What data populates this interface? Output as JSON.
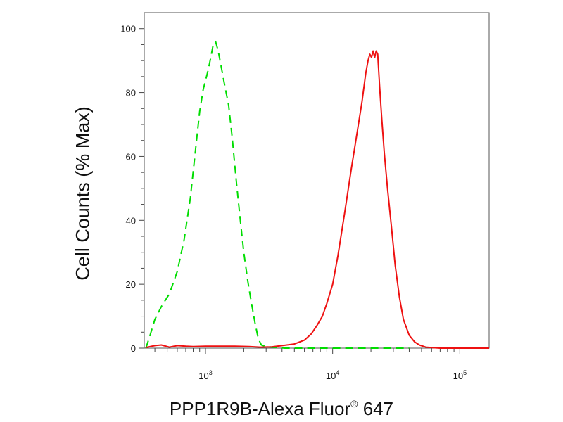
{
  "chart_data": {
    "type": "line",
    "title": "",
    "ylabel": "Cell Counts (% Max)",
    "xlabel": {
      "main": "PPP1R9B-Alexa Fluor",
      "sup": "®",
      "tail": " 647"
    },
    "x_scale": "log",
    "xlim": [
      330,
      170000
    ],
    "ylim": [
      0,
      105
    ],
    "y_ticks": [
      0,
      20,
      40,
      60,
      80,
      100
    ],
    "x_ticks": [
      {
        "value": 1000,
        "base": "10",
        "exp": "3"
      },
      {
        "value": 10000,
        "base": "10",
        "exp": "4"
      },
      {
        "value": 100000,
        "base": "10",
        "exp": "5"
      }
    ],
    "grid": false,
    "series": [
      {
        "color": "#00dd00",
        "dash": "dashed",
        "points": [
          [
            340,
            0
          ],
          [
            360,
            3
          ],
          [
            400,
            9
          ],
          [
            450,
            13
          ],
          [
            520,
            17
          ],
          [
            600,
            24
          ],
          [
            680,
            34
          ],
          [
            760,
            47
          ],
          [
            840,
            63
          ],
          [
            900,
            74
          ],
          [
            960,
            81
          ],
          [
            1050,
            87
          ],
          [
            1100,
            91
          ],
          [
            1150,
            95
          ],
          [
            1200,
            96
          ],
          [
            1260,
            93
          ],
          [
            1330,
            88
          ],
          [
            1420,
            82
          ],
          [
            1520,
            76
          ],
          [
            1620,
            66
          ],
          [
            1750,
            52
          ],
          [
            1880,
            40
          ],
          [
            2000,
            30
          ],
          [
            2150,
            21
          ],
          [
            2300,
            14
          ],
          [
            2450,
            8
          ],
          [
            2600,
            3
          ],
          [
            2750,
            1
          ],
          [
            3000,
            0.5
          ],
          [
            3400,
            0.3
          ],
          [
            4200,
            0
          ],
          [
            9000,
            0
          ],
          [
            20000,
            0
          ],
          [
            40000,
            0
          ]
        ]
      },
      {
        "color": "#ee1111",
        "dash": "solid",
        "points": [
          [
            340,
            0.2
          ],
          [
            400,
            0.8
          ],
          [
            450,
            1
          ],
          [
            520,
            0.3
          ],
          [
            600,
            0.8
          ],
          [
            700,
            0.6
          ],
          [
            800,
            0.5
          ],
          [
            1000,
            0.6
          ],
          [
            1300,
            0.6
          ],
          [
            1700,
            0.6
          ],
          [
            2200,
            0.5
          ],
          [
            2700,
            0.3
          ],
          [
            3300,
            0.4
          ],
          [
            4000,
            0.8
          ],
          [
            5000,
            1.3
          ],
          [
            6000,
            2.5
          ],
          [
            6800,
            4.5
          ],
          [
            7500,
            7
          ],
          [
            8300,
            10
          ],
          [
            9000,
            14
          ],
          [
            10000,
            20
          ],
          [
            11000,
            29
          ],
          [
            12500,
            43
          ],
          [
            14000,
            56
          ],
          [
            15500,
            67
          ],
          [
            17000,
            77
          ],
          [
            18200,
            86
          ],
          [
            19000,
            90
          ],
          [
            19600,
            92
          ],
          [
            20200,
            91
          ],
          [
            20800,
            93
          ],
          [
            21400,
            91
          ],
          [
            22000,
            93
          ],
          [
            22600,
            92
          ],
          [
            23400,
            82
          ],
          [
            24300,
            72
          ],
          [
            25500,
            61
          ],
          [
            27000,
            50
          ],
          [
            29000,
            38
          ],
          [
            31000,
            26
          ],
          [
            33500,
            16
          ],
          [
            36000,
            9
          ],
          [
            40000,
            4
          ],
          [
            44000,
            2
          ],
          [
            48000,
            1
          ],
          [
            54000,
            0.3
          ],
          [
            70000,
            0
          ],
          [
            100000,
            0
          ],
          [
            170000,
            0
          ]
        ]
      }
    ]
  }
}
